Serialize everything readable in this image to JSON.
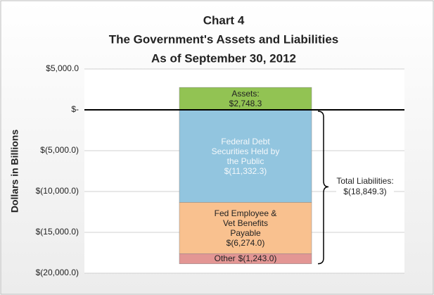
{
  "chart_data": {
    "type": "bar",
    "title": [
      "Chart 4",
      "The Government's Assets and Liabilities",
      "As of September 30, 2012"
    ],
    "y_label": "Dollars in Billions",
    "categories": [
      null
    ],
    "series": [
      {
        "name": "Assets:",
        "color": "#92c353",
        "values": [
          2748.3
        ],
        "value_labels": [
          "$2,748.3"
        ]
      },
      {
        "name": "Federal Debt Securities Held by the Public",
        "color": "#92c5df",
        "values": [
          -11332.3
        ],
        "value_labels": [
          "$(11,332.3)"
        ]
      },
      {
        "name": "Fed Employee & Vet Benefits Payable",
        "color": "#f9c18f",
        "values": [
          -6274.0
        ],
        "value_labels": [
          "$(6,274.0)"
        ]
      },
      {
        "name": "Other",
        "color": "#e39694",
        "values": [
          -1243.0
        ],
        "value_labels": [
          "$(1,243.0)"
        ]
      }
    ],
    "annotation": {
      "label": "Total Liabilities:",
      "value": -18849.3,
      "value_label": "$(18,849.3)"
    },
    "ylim": [
      -20000,
      5000
    ],
    "yticks": [
      {
        "value": 5000,
        "label": "$5,000.0"
      },
      {
        "value": 0,
        "label": "$-"
      },
      {
        "value": -5000,
        "label": "$(5,000.0)"
      },
      {
        "value": -10000,
        "label": "$(10,000.0)"
      },
      {
        "value": -15000,
        "label": "$(15,000.0)"
      },
      {
        "value": -20000,
        "label": "$(20,000.0)"
      }
    ],
    "grid": true
  }
}
